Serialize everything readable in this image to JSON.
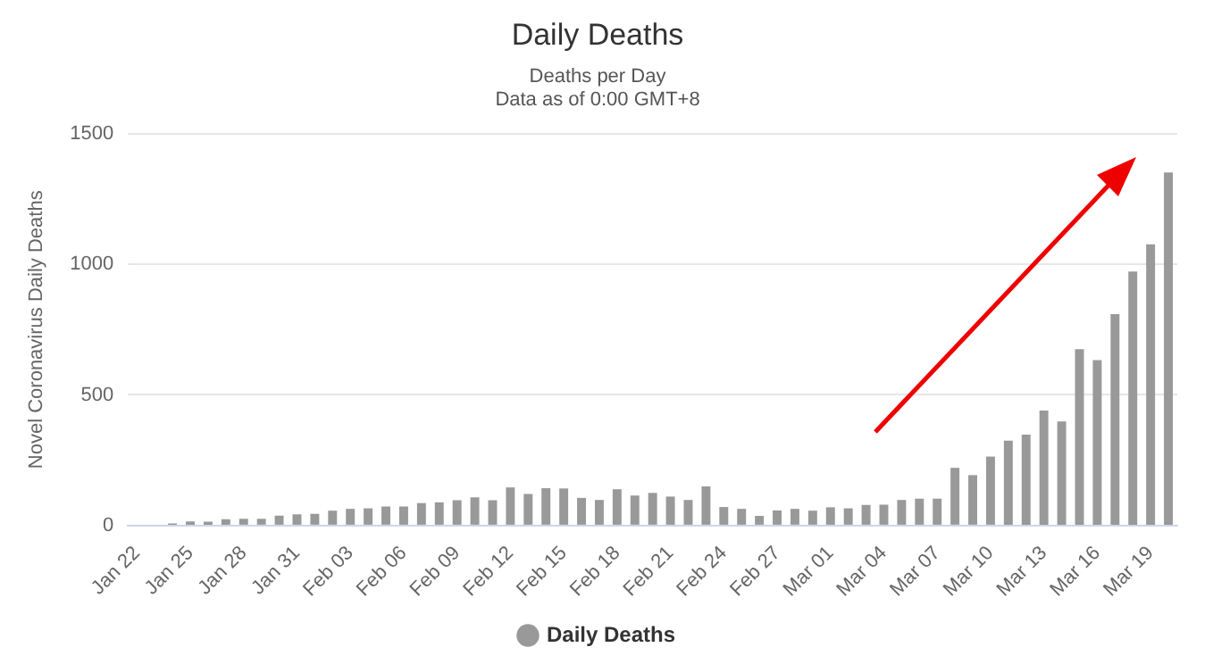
{
  "chart_data": {
    "type": "bar",
    "title": "Daily Deaths",
    "subtitle": "Deaths per Day\nData as of 0:00 GMT+8",
    "ylabel": "Novel Coronavirus Daily Deaths",
    "categories": [
      "Jan 22",
      null,
      null,
      "Jan 25",
      null,
      null,
      "Jan 28",
      null,
      null,
      "Jan 31",
      null,
      null,
      "Feb 03",
      null,
      null,
      "Feb 06",
      null,
      null,
      "Feb 09",
      null,
      null,
      "Feb 12",
      null,
      null,
      "Feb 15",
      null,
      null,
      "Feb 18",
      null,
      null,
      "Feb 21",
      null,
      null,
      "Feb 24",
      null,
      null,
      "Feb 27",
      null,
      null,
      "Mar 01",
      null,
      null,
      "Mar 04",
      null,
      null,
      "Mar 07",
      null,
      null,
      "Mar 10",
      null,
      null,
      "Mar 13",
      null,
      null,
      "Mar 16",
      null,
      null,
      "Mar 19",
      null
    ],
    "series": [
      {
        "name": "Daily Deaths",
        "color": "#999999",
        "values": [
          0,
          0,
          8,
          16,
          15,
          24,
          26,
          26,
          38,
          43,
          45,
          57,
          64,
          66,
          73,
          73,
          86,
          89,
          97,
          108,
          97,
          146,
          121,
          143,
          142,
          106,
          98,
          139,
          115,
          125,
          111,
          98,
          150,
          71,
          64,
          37,
          58,
          64,
          57,
          70,
          66,
          79,
          80,
          98,
          103,
          103,
          221,
          193,
          264,
          325,
          348,
          440,
          398,
          675,
          633,
          809,
          972,
          1076,
          1351
        ]
      }
    ],
    "ylim": [
      0,
      1500
    ],
    "yticks": [
      0,
      500,
      1000,
      1500
    ],
    "grid": "y",
    "legend": "bottom"
  }
}
